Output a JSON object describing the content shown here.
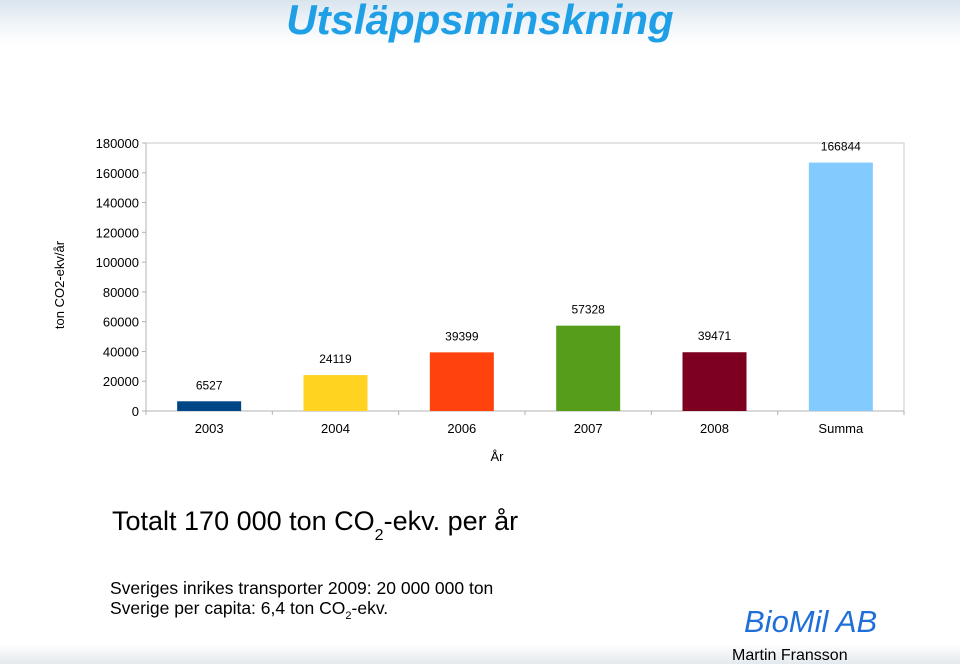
{
  "slide": {
    "title": "Utsläppsminskning",
    "total": {
      "prefix": "Totalt 170 000 ton CO",
      "sub": "2",
      "suffix": "-ekv. per år"
    },
    "line1": "Sveriges inrikes transporter 2009: 20 000 000 ton",
    "line2": {
      "prefix": "Sverige per capita: 6,4 ton CO",
      "sub": "2",
      "suffix": "-ekv."
    },
    "brand": "BioMil AB",
    "author": "Martin Fransson"
  },
  "colors": {
    "title": "#1e9fe6",
    "brand": "#1e6fd9"
  },
  "chart_data": {
    "type": "bar",
    "categories": [
      "2003",
      "2004",
      "2006",
      "2007",
      "2008",
      "Summa"
    ],
    "values": [
      6527,
      24119,
      39399,
      57328,
      39471,
      166844
    ],
    "data_labels": [
      "6527",
      "24119",
      "39399",
      "57328",
      "39471",
      "166844"
    ],
    "colors": [
      "#004586",
      "#ffd320",
      "#ff420e",
      "#579d1c",
      "#7e0021",
      "#83caff"
    ],
    "xlabel": "År",
    "ylabel": "ton CO2-ekv/år",
    "ylim": [
      0,
      180000
    ],
    "yticks": [
      0,
      20000,
      40000,
      60000,
      80000,
      100000,
      120000,
      140000,
      160000,
      180000
    ],
    "ytick_labels": [
      "0",
      "20000",
      "40000",
      "60000",
      "80000",
      "100000",
      "120000",
      "140000",
      "160000",
      "180000"
    ],
    "grid": false,
    "legend": "none"
  }
}
